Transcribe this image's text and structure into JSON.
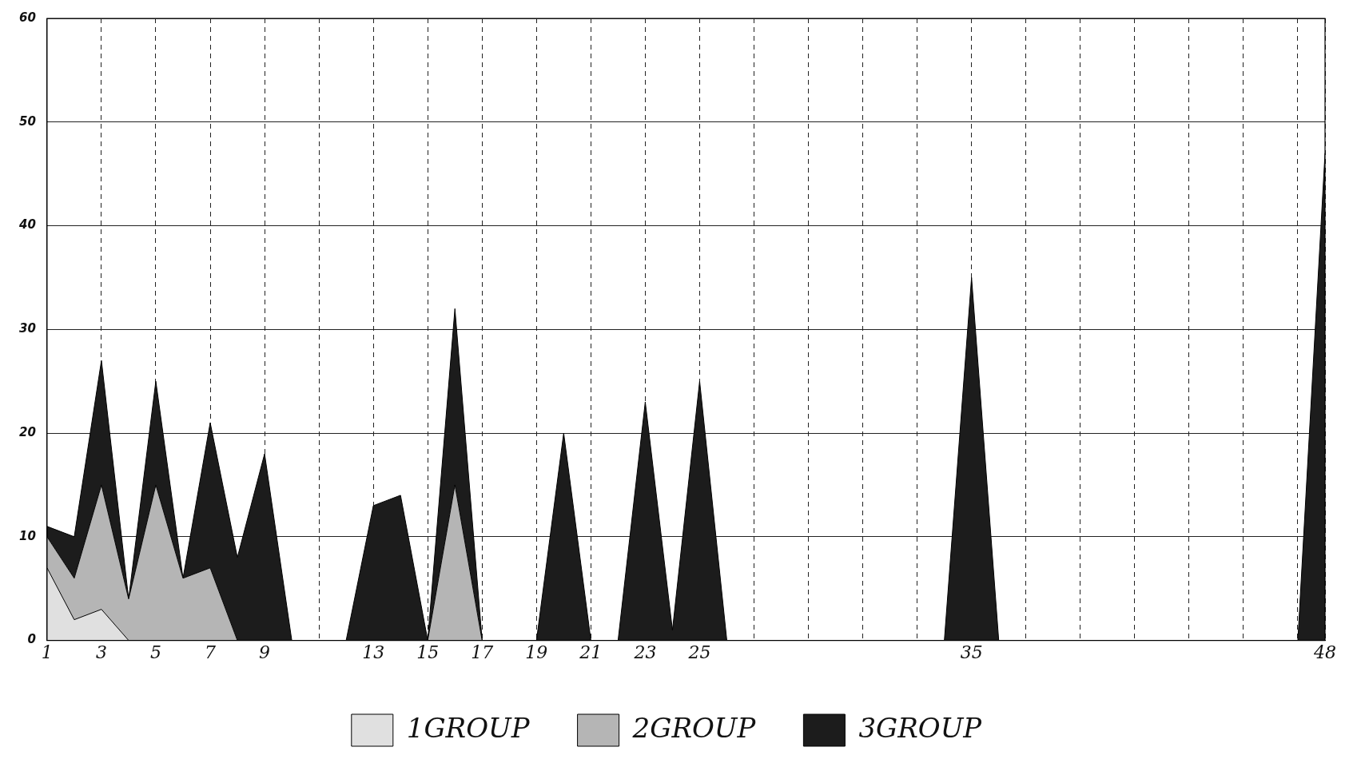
{
  "chart_data": {
    "type": "area",
    "stacked": true,
    "x": [
      1,
      2,
      3,
      4,
      5,
      6,
      7,
      8,
      9,
      10,
      11,
      12,
      13,
      14,
      15,
      16,
      17,
      18,
      19,
      20,
      21,
      22,
      23,
      24,
      25,
      26,
      27,
      28,
      29,
      30,
      31,
      32,
      33,
      34,
      35,
      36,
      37,
      38,
      39,
      40,
      41,
      42,
      43,
      44,
      45,
      46,
      47,
      48
    ],
    "series": [
      {
        "name": "1GROUP",
        "color": "#e0e0e0",
        "values": [
          7,
          2,
          3,
          0,
          0,
          0,
          0,
          0,
          0,
          0,
          0,
          0,
          0,
          0,
          0,
          0,
          0,
          0,
          0,
          0,
          0,
          0,
          0,
          0,
          0,
          0,
          0,
          0,
          0,
          0,
          0,
          0,
          0,
          0,
          0,
          0,
          0,
          0,
          0,
          0,
          0,
          0,
          0,
          0,
          0,
          0,
          0,
          0
        ]
      },
      {
        "name": "2GROUP",
        "color": "#b5b5b5",
        "values": [
          3,
          4,
          12,
          4,
          15,
          6,
          7,
          0,
          0,
          0,
          0,
          0,
          0,
          0,
          0,
          15,
          0,
          0,
          0,
          0,
          0,
          0,
          0,
          0,
          0,
          0,
          0,
          0,
          0,
          0,
          0,
          0,
          0,
          0,
          0,
          0,
          0,
          0,
          0,
          0,
          0,
          0,
          0,
          0,
          0,
          0,
          0,
          0
        ]
      },
      {
        "name": "3GROUP",
        "color": "#1c1c1c",
        "values": [
          1,
          4,
          12,
          0,
          10,
          0,
          14,
          8,
          18,
          0,
          0,
          0,
          13,
          14,
          0,
          17,
          0,
          0,
          0,
          20,
          0,
          0,
          23,
          1,
          25,
          0,
          0,
          0,
          0,
          0,
          0,
          0,
          0,
          0,
          35,
          0,
          0,
          0,
          0,
          0,
          0,
          0,
          0,
          0,
          0,
          0,
          0,
          47
        ]
      }
    ],
    "xlim": [
      1,
      48
    ],
    "xticks": [
      1,
      {
        "value": 3,
        "label": "3"
      },
      5,
      7,
      9,
      {
        "value": 11,
        "label": null
      },
      13,
      15,
      17,
      19,
      21,
      23,
      25,
      {
        "value": 27,
        "label": null
      },
      {
        "value": 29,
        "label": null
      },
      {
        "value": 31,
        "label": null
      },
      {
        "value": 33,
        "label": null
      },
      35,
      {
        "value": 37,
        "label": null
      },
      {
        "value": 39,
        "label": null
      },
      {
        "value": 41,
        "label": null
      },
      {
        "value": 43,
        "label": null
      },
      {
        "value": 45,
        "label": null
      },
      {
        "value": 47,
        "label": null
      },
      48
    ],
    "ylim": [
      0,
      60
    ],
    "yticks": [
      0,
      10,
      20,
      30,
      40,
      50,
      60
    ],
    "grid": true,
    "legend": "bottom"
  }
}
